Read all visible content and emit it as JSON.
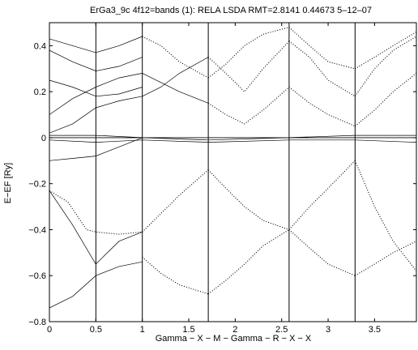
{
  "chart_data": {
    "type": "line",
    "title": "ErGa3_9c 4f12=bands (1): RELA LSDA RMT=2.8141 0.44673  5–12–07",
    "xlabel": "Gamma − X − M − Gamma − R − X − X",
    "ylabel": "E−EF [Ry]",
    "xlim": [
      0,
      3.95
    ],
    "ylim": [
      -0.8,
      0.5
    ],
    "x_ticks": [
      0,
      0.5,
      1,
      1.5,
      2,
      2.5,
      3,
      3.5
    ],
    "x_tick_labels": [
      "0",
      "0.5",
      "1",
      "1.5",
      "2",
      "2.5",
      "3",
      "3.5"
    ],
    "y_ticks": [
      -0.8,
      -0.6,
      -0.4,
      -0.2,
      0,
      0.2,
      0.4
    ],
    "y_tick_labels": [
      "−0.8",
      "−0.6",
      "−0.4",
      "−0.2",
      "0",
      "0.2",
      "0.4"
    ],
    "grid": false,
    "high_symmetry_x": [
      0.5,
      1.0,
      1.71,
      2.58,
      3.29
    ],
    "series": [
      {
        "x": [
          0,
          0.25,
          0.5,
          0.75,
          1.0
        ],
        "y": [
          -0.74,
          -0.69,
          -0.6,
          -0.56,
          -0.54
        ],
        "style": "solid"
      },
      {
        "x": [
          0,
          0.25,
          0.5,
          0.75,
          1.0
        ],
        "y": [
          -0.23,
          -0.38,
          -0.55,
          -0.45,
          -0.41
        ],
        "style": "solid"
      },
      {
        "x": [
          0,
          0.2,
          0.4,
          0.5,
          0.75,
          1.0
        ],
        "y": [
          -0.23,
          -0.28,
          -0.4,
          -0.41,
          -0.42,
          -0.41
        ],
        "style": "dotted"
      },
      {
        "x": [
          1.0,
          1.2,
          1.4,
          1.71
        ],
        "y": [
          -0.41,
          -0.33,
          -0.25,
          -0.14
        ],
        "style": "dotted"
      },
      {
        "x": [
          1.0,
          1.2,
          1.4,
          1.71
        ],
        "y": [
          -0.52,
          -0.59,
          -0.64,
          -0.68
        ],
        "style": "dotted"
      },
      {
        "x": [
          1.71,
          1.9,
          2.1,
          2.3,
          2.58
        ],
        "y": [
          -0.68,
          -0.62,
          -0.55,
          -0.47,
          -0.4
        ],
        "style": "dotted"
      },
      {
        "x": [
          1.71,
          1.9,
          2.1,
          2.3,
          2.58
        ],
        "y": [
          -0.14,
          -0.22,
          -0.3,
          -0.36,
          -0.4
        ],
        "style": "dotted"
      },
      {
        "x": [
          2.58,
          2.8,
          3.0,
          3.29
        ],
        "y": [
          -0.4,
          -0.48,
          -0.55,
          -0.6
        ],
        "style": "dotted"
      },
      {
        "x": [
          2.58,
          2.8,
          3.0,
          3.29
        ],
        "y": [
          -0.4,
          -0.3,
          -0.22,
          -0.1
        ],
        "style": "dotted"
      },
      {
        "x": [
          3.29,
          3.5,
          3.7,
          3.95
        ],
        "y": [
          -0.6,
          -0.55,
          -0.5,
          -0.45
        ],
        "style": "dotted"
      },
      {
        "x": [
          3.29,
          3.5,
          3.7,
          3.95
        ],
        "y": [
          -0.1,
          -0.3,
          -0.45,
          -0.58
        ],
        "style": "dotted"
      },
      {
        "x": [
          0,
          0.25,
          0.5,
          0.75,
          1.0
        ],
        "y": [
          -0.1,
          -0.09,
          -0.08,
          -0.04,
          0.0
        ],
        "style": "solid"
      },
      {
        "x": [
          0,
          0.5,
          1.0,
          1.71,
          2.58,
          3.29,
          3.95
        ],
        "y": [
          0.01,
          0.01,
          0.0,
          -0.01,
          0.0,
          0.01,
          0.01
        ],
        "style": "solid"
      },
      {
        "x": [
          0,
          0.5,
          1.0,
          1.71,
          2.58,
          3.29,
          3.95
        ],
        "y": [
          -0.01,
          -0.02,
          -0.01,
          -0.02,
          -0.01,
          -0.01,
          -0.02
        ],
        "style": "solid"
      },
      {
        "x": [
          0,
          0.25,
          0.5,
          0.75,
          1.0
        ],
        "y": [
          0.02,
          0.06,
          0.13,
          0.16,
          0.18
        ],
        "style": "solid"
      },
      {
        "x": [
          0,
          0.25,
          0.5,
          0.75,
          1.0
        ],
        "y": [
          0.1,
          0.17,
          0.22,
          0.26,
          0.28
        ],
        "style": "solid"
      },
      {
        "x": [
          0,
          0.25,
          0.5,
          0.75,
          1.0
        ],
        "y": [
          0.25,
          0.22,
          0.18,
          0.19,
          0.22
        ],
        "style": "solid"
      },
      {
        "x": [
          0,
          0.25,
          0.5,
          0.75,
          1.0
        ],
        "y": [
          0.38,
          0.33,
          0.29,
          0.31,
          0.35
        ],
        "style": "solid"
      },
      {
        "x": [
          0,
          0.25,
          0.5,
          0.75,
          1.0
        ],
        "y": [
          0.43,
          0.4,
          0.37,
          0.4,
          0.44
        ],
        "style": "solid"
      },
      {
        "x": [
          1.0,
          1.2,
          1.4,
          1.71
        ],
        "y": [
          0.18,
          0.22,
          0.28,
          0.35
        ],
        "style": "solid"
      },
      {
        "x": [
          1.0,
          1.2,
          1.4,
          1.71
        ],
        "y": [
          0.28,
          0.24,
          0.2,
          0.15
        ],
        "style": "solid"
      },
      {
        "x": [
          1.0,
          1.2,
          1.4,
          1.71
        ],
        "y": [
          0.44,
          0.4,
          0.33,
          0.26
        ],
        "style": "dotted"
      },
      {
        "x": [
          1.71,
          1.9,
          2.1,
          2.3,
          2.58
        ],
        "y": [
          0.15,
          0.1,
          0.06,
          0.12,
          0.22
        ],
        "style": "dotted"
      },
      {
        "x": [
          1.71,
          1.9,
          2.1,
          2.3,
          2.58
        ],
        "y": [
          0.35,
          0.28,
          0.2,
          0.3,
          0.42
        ],
        "style": "dotted"
      },
      {
        "x": [
          1.71,
          1.9,
          2.1,
          2.3,
          2.58
        ],
        "y": [
          0.26,
          0.32,
          0.4,
          0.45,
          0.48
        ],
        "style": "dotted"
      },
      {
        "x": [
          2.58,
          2.8,
          3.0,
          3.29
        ],
        "y": [
          0.22,
          0.15,
          0.1,
          0.05
        ],
        "style": "dotted"
      },
      {
        "x": [
          2.58,
          2.8,
          3.0,
          3.29
        ],
        "y": [
          0.42,
          0.35,
          0.25,
          0.18
        ],
        "style": "dotted"
      },
      {
        "x": [
          2.58,
          2.8,
          3.0,
          3.29
        ],
        "y": [
          0.48,
          0.4,
          0.33,
          0.3
        ],
        "style": "dotted"
      },
      {
        "x": [
          3.29,
          3.5,
          3.7,
          3.95
        ],
        "y": [
          0.05,
          0.12,
          0.2,
          0.28
        ],
        "style": "dotted"
      },
      {
        "x": [
          3.29,
          3.5,
          3.7,
          3.95
        ],
        "y": [
          0.18,
          0.3,
          0.38,
          0.44
        ],
        "style": "dotted"
      },
      {
        "x": [
          3.29,
          3.5,
          3.7,
          3.95
        ],
        "y": [
          0.3,
          0.35,
          0.4,
          0.46
        ],
        "style": "dotted"
      }
    ]
  }
}
